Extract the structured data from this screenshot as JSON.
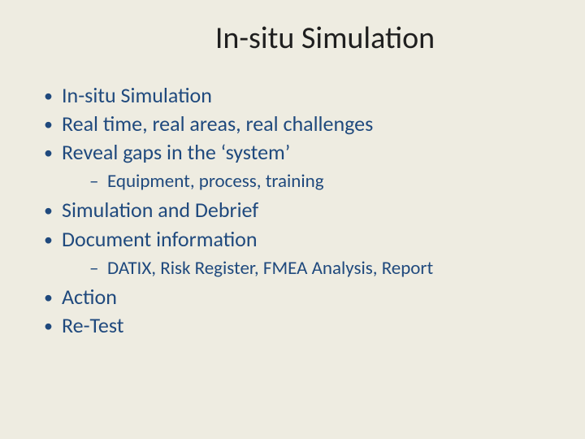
{
  "background_color": "#eeece1",
  "text_color": "#1f497d",
  "title_color": "#1f1f1f",
  "title": "In-situ Simulation",
  "title_fontsize": 38,
  "bullet_fontsize": 26,
  "subbullet_fontsize": 23,
  "bullets": {
    "b0": "In-situ Simulation",
    "b1": "Real time, real areas, real challenges",
    "b2": "Reveal gaps in the ‘system’",
    "b2_sub0": "Equipment, process, training",
    "b3": "Simulation and Debrief",
    "b4": "Document information",
    "b4_sub0": "DATIX, Risk Register, FMEA  Analysis, Report",
    "b5": "Action",
    "b6": "Re-Test"
  }
}
